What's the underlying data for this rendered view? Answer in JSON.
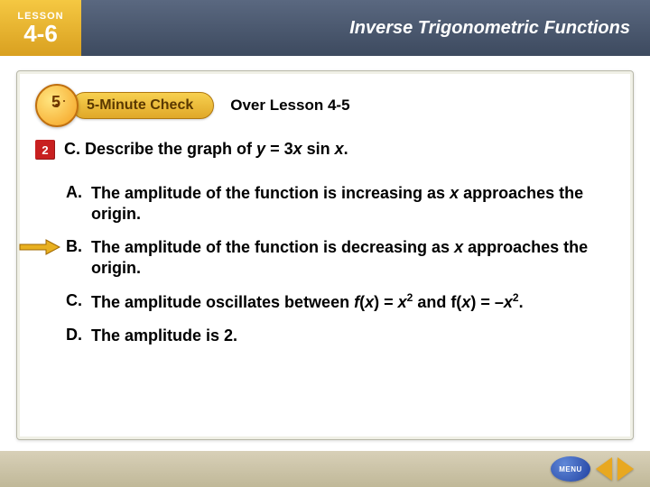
{
  "colors": {
    "header_grad_top": "#5a6880",
    "header_grad_bottom": "#3d4a5f",
    "badge_grad_top": "#f5c842",
    "badge_grad_bottom": "#d9a020",
    "banner_text": "#5a3800",
    "question_num_bg": "#c82020",
    "arrow_fill": "#e8b020",
    "arrow_stroke": "#a06800",
    "footer_grad_top": "#d8d0b8",
    "footer_grad_bottom": "#c0b898"
  },
  "header": {
    "lesson_label": "LESSON",
    "lesson_number": "4-6",
    "title": "Inverse Trigonometric Functions"
  },
  "banner": {
    "check_label": "5-Minute Check",
    "over_lesson": "Over Lesson 4-5"
  },
  "question": {
    "number": "2",
    "prefix": "C.  Describe the graph of ",
    "expr_html": "<span class='ital'>y</span> = 3<span class='ital'>x</span> sin <span class='ital'>x</span>.",
    "correct_index": 1,
    "choices": [
      {
        "letter": "A.",
        "html": "The amplitude of the function is increasing as <span class='ital'>x</span> approaches the origin."
      },
      {
        "letter": "B.",
        "html": "The amplitude of the function is decreasing as <span class='ital'>x</span> approaches the origin."
      },
      {
        "letter": "C.",
        "html": "The amplitude oscillates between <span class='ital'>f</span>(<span class='ital'>x</span>) = <span class='ital'>x</span><sup>2</sup> and f(<span class='ital'>x</span>) = –<span class='ital'>x</span><sup>2</sup>."
      },
      {
        "letter": "D.",
        "html": "The amplitude is 2."
      }
    ]
  },
  "footer": {
    "menu_label": "MENU"
  }
}
